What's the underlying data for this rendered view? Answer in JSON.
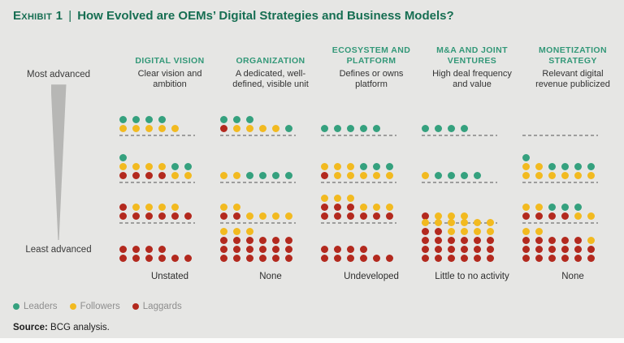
{
  "title": {
    "exhibit": "Exhibit 1",
    "separator": "|",
    "text": "How Evolved are OEMs’ Digital Strategies and Business Models?"
  },
  "axis": {
    "top": "Most advanced",
    "bottom": "Least advanced"
  },
  "legend": [
    {
      "label": "Leaders",
      "color": "#35a17e"
    },
    {
      "label": "Followers",
      "color": "#f2ba20"
    },
    {
      "label": "Laggards",
      "color": "#b3291e"
    }
  ],
  "source": {
    "label": "Source:",
    "text": " BCG analysis."
  },
  "chart_data": {
    "type": "dot_matrix",
    "title": "Exhibit 1 | How Evolved are OEMs’ Digital Strategies and Business Models?",
    "description": "Each dot is one OEM; dots are grouped in four maturity tiers from most advanced (top) to least advanced (bottom) for five dimensions.",
    "dot_key": {
      "g": "Leaders",
      "y": "Followers",
      "r": "Laggards"
    },
    "dot_colors": {
      "g": "#35a17e",
      "y": "#f2ba20",
      "r": "#b3291e"
    },
    "tier_scale": [
      "Most advanced",
      "Least advanced"
    ],
    "columns": [
      {
        "header": "DIGITAL VISION",
        "subtitle": "Clear vision and ambition",
        "bottom_label": "Unstated",
        "tiers": [
          [
            "gggg",
            "yyyyy"
          ],
          [
            "g",
            "yyyygg",
            "rrrryy"
          ],
          [
            "ryyyy",
            "rrrrrr"
          ],
          [
            "rrrr",
            "rrrrrr"
          ]
        ]
      },
      {
        "header": "ORGANIZATION",
        "subtitle": "A dedicated, well-defined, visible unit",
        "bottom_label": "None",
        "tiers": [
          [
            "ggg",
            "ryyyyg"
          ],
          [
            "yygggg"
          ],
          [
            "yy",
            "rryyyy"
          ],
          [
            "yyy",
            "rrrrrr",
            "rrrrrr",
            "rrrrrr"
          ]
        ]
      },
      {
        "header": "ECOSYSTEM AND PLATFORM",
        "subtitle": "Defines or owns platform",
        "bottom_label": "Undeveloped",
        "tiers": [
          [
            "ggggg"
          ],
          [
            "yyyggg",
            "ryyyyy"
          ],
          [
            "yyy",
            "rrryyy",
            "rrrrrr"
          ],
          [
            "rrrr",
            "rrrrrr"
          ]
        ]
      },
      {
        "header": "M&A AND JOINT VENTURES",
        "subtitle": "High deal frequency and value",
        "bottom_label": "Little to no activity",
        "tiers": [
          [
            "gggg"
          ],
          [
            "ygggg"
          ],
          [
            "ryyy"
          ],
          [
            "yyyyyy",
            "rryyyy",
            "rrrrrr",
            "rrrrrr",
            "rrrrrr"
          ]
        ]
      },
      {
        "header": "MONETIZATION STRATEGY",
        "subtitle": "Relevant digital revenue publicized",
        "bottom_label": "None",
        "tiers": [
          [],
          [
            "g",
            "yygggg",
            "yyyyyy"
          ],
          [
            "yyggg",
            "rrrryy"
          ],
          [
            "yy",
            "rrrrry",
            "rrrrrr",
            "rrrrrr"
          ]
        ]
      }
    ]
  }
}
